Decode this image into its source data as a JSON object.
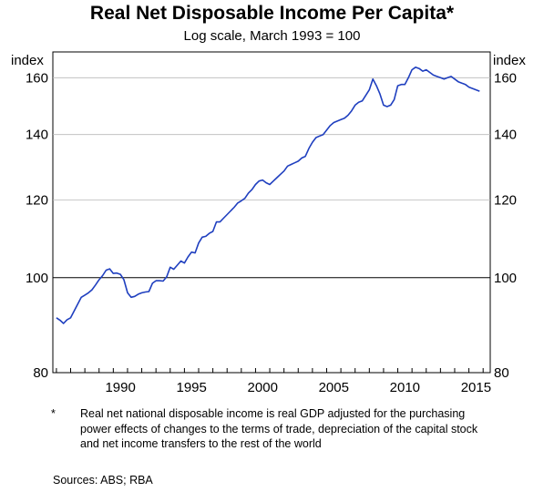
{
  "title": "Real Net Disposable Income Per Capita*",
  "subtitle": "Log scale, March 1993 = 100",
  "footnote": {
    "marker": "*",
    "text": "Real net national disposable income is real GDP adjusted for the purchasing power effects of changes to the terms of trade, depreciation of the capital stock and net income transfers to the rest of the world"
  },
  "sources": "Sources:   ABS; RBA",
  "chart_data": {
    "type": "line",
    "scale": "log",
    "ylabel_left": "index",
    "ylabel_right": "index",
    "ylim": [
      80,
      170
    ],
    "xlim": [
      1985.75,
      2016.5
    ],
    "yticks": [
      80,
      100,
      120,
      140,
      160
    ],
    "xticks": [
      1990,
      1995,
      2000,
      2005,
      2010,
      2015
    ],
    "reference_line": 100,
    "grid": true,
    "series": [
      {
        "color": "#1f3fbf",
        "x": [
          1986.0,
          1986.25,
          1986.5,
          1986.75,
          1987.0,
          1987.25,
          1987.5,
          1987.75,
          1988.0,
          1988.25,
          1988.5,
          1988.75,
          1989.0,
          1989.25,
          1989.5,
          1989.75,
          1990.0,
          1990.25,
          1990.5,
          1990.75,
          1991.0,
          1991.25,
          1991.5,
          1991.75,
          1992.0,
          1992.25,
          1992.5,
          1992.75,
          1993.0,
          1993.25,
          1993.5,
          1993.75,
          1994.0,
          1994.25,
          1994.5,
          1994.75,
          1995.0,
          1995.25,
          1995.5,
          1995.75,
          1996.0,
          1996.25,
          1996.5,
          1996.75,
          1997.0,
          1997.25,
          1997.5,
          1997.75,
          1998.0,
          1998.25,
          1998.5,
          1998.75,
          1999.0,
          1999.25,
          1999.5,
          1999.75,
          2000.0,
          2000.25,
          2000.5,
          2000.75,
          2001.0,
          2001.25,
          2001.5,
          2001.75,
          2002.0,
          2002.25,
          2002.5,
          2002.75,
          2003.0,
          2003.25,
          2003.5,
          2003.75,
          2004.0,
          2004.25,
          2004.5,
          2004.75,
          2005.0,
          2005.25,
          2005.5,
          2005.75,
          2006.0,
          2006.25,
          2006.5,
          2006.75,
          2007.0,
          2007.25,
          2007.5,
          2007.75,
          2008.0,
          2008.25,
          2008.5,
          2008.75,
          2009.0,
          2009.25,
          2009.5,
          2009.75,
          2010.0,
          2010.25,
          2010.5,
          2010.75,
          2011.0,
          2011.25,
          2011.5,
          2011.75,
          2012.0,
          2012.25,
          2012.5,
          2012.75,
          2013.0,
          2013.25,
          2013.5,
          2013.75,
          2014.0,
          2014.25,
          2014.5,
          2014.75,
          2015.0,
          2015.25,
          2015.5,
          2015.75
        ],
        "y": [
          91.0,
          90.5,
          89.8,
          90.6,
          91.0,
          92.5,
          94.0,
          95.5,
          96.0,
          96.5,
          97.2,
          98.3,
          99.5,
          100.5,
          101.8,
          102.1,
          101.0,
          101.1,
          100.8,
          99.5,
          96.5,
          95.5,
          95.7,
          96.2,
          96.5,
          96.7,
          96.8,
          98.7,
          99.3,
          99.3,
          99.2,
          100.2,
          102.5,
          102.0,
          103.0,
          104.0,
          103.5,
          105.0,
          106.2,
          106.0,
          108.5,
          110.0,
          110.2,
          111.0,
          111.5,
          114.0,
          114.0,
          115.0,
          116.0,
          117.0,
          118.0,
          119.2,
          119.8,
          120.5,
          122.0,
          123.0,
          124.5,
          125.5,
          125.8,
          125.0,
          124.5,
          125.5,
          126.5,
          127.5,
          128.5,
          130.0,
          130.5,
          131.0,
          131.5,
          132.5,
          133.0,
          135.5,
          137.5,
          139.0,
          139.5,
          140.0,
          141.5,
          143.0,
          144.0,
          144.5,
          145.0,
          145.5,
          146.5,
          148.0,
          150.0,
          151.0,
          151.5,
          153.5,
          155.5,
          159.5,
          157.0,
          154.0,
          150.0,
          149.5,
          150.0,
          152.0,
          157.0,
          157.5,
          157.5,
          160.0,
          163.0,
          164.0,
          163.5,
          162.5,
          163.0,
          162.0,
          161.0,
          160.5,
          160.0,
          159.5,
          160.0,
          160.5,
          159.5,
          158.5,
          158.0,
          157.5,
          156.5,
          156.0,
          155.5,
          155.0
        ]
      }
    ]
  }
}
